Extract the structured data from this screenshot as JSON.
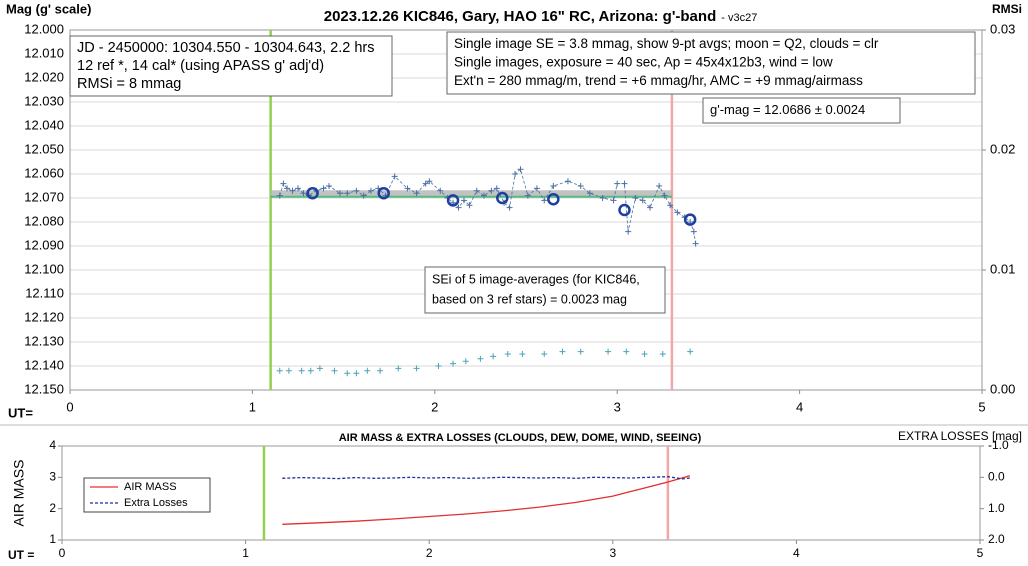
{
  "chart_data": [
    {
      "type": "scatter",
      "title": "2023.12.26 KIC846, Gary, HAO 16\" RC, Arizona: g'-band",
      "subtitle": "- v3c27",
      "y_label": "Mag (g' scale)",
      "y2_label": "RMSi",
      "x_label": "UT=",
      "xlim": [
        0,
        5
      ],
      "xticks": [
        0,
        1,
        2,
        3,
        4,
        5
      ],
      "ylim": [
        12.15,
        12.0
      ],
      "yticks": [
        {
          "value": 12,
          "label": "12.000"
        },
        {
          "value": 12.01,
          "label": "12.010"
        },
        {
          "value": 12.02,
          "label": "12.020"
        },
        {
          "value": 12.03,
          "label": "12.030"
        },
        {
          "value": 12.04,
          "label": "12.040"
        },
        {
          "value": 12.05,
          "label": "12.050"
        },
        {
          "value": 12.06,
          "label": "12.060"
        },
        {
          "value": 12.07,
          "label": "12.070"
        },
        {
          "value": 12.08,
          "label": "12.080"
        },
        {
          "value": 12.09,
          "label": "12.090"
        },
        {
          "value": 12.1,
          "label": "12.100"
        },
        {
          "value": 12.11,
          "label": "12.110"
        },
        {
          "value": 12.12,
          "label": "12.120"
        },
        {
          "value": 12.13,
          "label": "12.130"
        },
        {
          "value": 12.14,
          "label": "12.140"
        },
        {
          "value": 12.15,
          "label": "12.150"
        }
      ],
      "y2lim": [
        0,
        0.03
      ],
      "y2ticks": [
        {
          "value": 0,
          "label": "0.00"
        },
        0.01,
        0.02,
        0.03
      ],
      "grid": true,
      "vlines": [
        {
          "x": 1.1,
          "color": "#92d050"
        },
        {
          "x": 3.3,
          "color": "#f4a6a6"
        }
      ],
      "bands": [
        {
          "y": 12.068,
          "x": [
            1.1,
            3.3
          ],
          "color": "#b8b8b8",
          "width": 6
        },
        {
          "y": 12.0695,
          "x": [
            1.1,
            3.3
          ],
          "color": "#3cb371",
          "width": 2
        }
      ],
      "series": [
        {
          "color": "#4a6fa5",
          "marker": "plus",
          "line": "dashed",
          "x": [
            1.15,
            1.17,
            1.19,
            1.22,
            1.25,
            1.28,
            1.31,
            1.35,
            1.39,
            1.42,
            1.48,
            1.52,
            1.57,
            1.61,
            1.65,
            1.69,
            1.73,
            1.78,
            1.85,
            1.9,
            1.95,
            1.97,
            2.03,
            2.07,
            2.1,
            2.13,
            2.16,
            2.19,
            2.23,
            2.27,
            2.31,
            2.34,
            2.38,
            2.41,
            2.44,
            2.47,
            2.51,
            2.56,
            2.6,
            2.65,
            2.73,
            2.8,
            2.85,
            2.92,
            2.98,
            3.0,
            3.04,
            3.06,
            3.1,
            3.14,
            3.18,
            3.23,
            3.26,
            3.29,
            3.33,
            3.37,
            3.4,
            3.42,
            3.43
          ],
          "values": [
            12.069,
            12.064,
            12.066,
            12.067,
            12.066,
            12.068,
            12.069,
            12.067,
            12.066,
            12.065,
            12.068,
            12.068,
            12.067,
            12.069,
            12.067,
            12.066,
            12.069,
            12.061,
            12.066,
            12.068,
            12.064,
            12.063,
            12.067,
            12.07,
            12.072,
            12.074,
            12.071,
            12.073,
            12.067,
            12.069,
            12.067,
            12.066,
            12.072,
            12.074,
            12.06,
            12.058,
            12.069,
            12.066,
            12.071,
            12.065,
            12.063,
            12.065,
            12.068,
            12.07,
            12.071,
            12.064,
            12.064,
            12.084,
            12.07,
            12.071,
            12.074,
            12.065,
            12.069,
            12.073,
            12.076,
            12.078,
            12.08,
            12.084,
            12.089
          ]
        },
        {
          "color": "#1f3fa0",
          "marker": "circle",
          "line": null,
          "x": [
            1.33,
            1.72,
            2.1,
            2.37,
            2.65,
            3.04,
            3.4
          ],
          "values": [
            12.068,
            12.068,
            12.071,
            12.07,
            12.0705,
            12.075,
            12.079
          ]
        },
        {
          "color": "#4aa3b8",
          "marker": "plus",
          "line": null,
          "x": [
            1.15,
            1.2,
            1.27,
            1.32,
            1.37,
            1.45,
            1.52,
            1.57,
            1.63,
            1.7,
            1.8,
            1.9,
            2.02,
            2.1,
            2.17,
            2.25,
            2.32,
            2.4,
            2.48,
            2.6,
            2.7,
            2.8,
            2.95,
            3.05,
            3.15,
            3.25,
            3.4
          ],
          "values": [
            12.142,
            12.142,
            12.142,
            12.142,
            12.141,
            12.142,
            12.143,
            12.143,
            12.142,
            12.142,
            12.141,
            12.141,
            12.14,
            12.139,
            12.138,
            12.137,
            12.136,
            12.135,
            12.135,
            12.135,
            12.134,
            12.134,
            12.134,
            12.134,
            12.135,
            12.135,
            12.134
          ]
        }
      ],
      "annotations": [
        [
          "JD - 2450000: 10304.550 - 10304.643, 2.2 hrs",
          "12 ref *, 14 cal* (using APASS g' adj'd)",
          "RMSi = 8 mmag"
        ],
        [
          "Single image SE = 3.8 mmag, show  9-pt avgs; moon = Q2, clouds = clr",
          "Single images, exposure = 40 sec, Ap = 45x4x12b3, wind = low",
          "Ext'n = 280 mmag/m, trend = +6 mmag/hr, AMC = +9 mmag/airmass"
        ],
        [
          "g'-mag = 12.0686 ± 0.0024"
        ],
        [
          "SEi of 5 image-averages (for KIC846,",
          "based on 3 ref stars) = 0.0023 mag"
        ]
      ]
    },
    {
      "type": "line",
      "title": "AIR MASS & EXTRA LOSSES (CLOUDS, DEW, DOME, WIND, SEEING)",
      "y_label": "AIR MASS",
      "y2_label": "EXTRA LOSSES [mag]",
      "x_label": "UT =",
      "xlim": [
        0,
        5
      ],
      "xticks": [
        0,
        1,
        2,
        3,
        4,
        5
      ],
      "ylim": [
        1,
        4
      ],
      "yticks": [
        1,
        2,
        3,
        4
      ],
      "y2lim": [
        2.0,
        -1.0
      ],
      "y2ticks": [
        {
          "value": -1,
          "label": "-1.0"
        },
        {
          "value": 0,
          "label": "0.0"
        },
        {
          "value": 1,
          "label": "1.0"
        },
        {
          "value": 2,
          "label": "2.0"
        }
      ],
      "grid": false,
      "legend": "lower left",
      "vlines": [
        {
          "x": 1.1,
          "color": "#92d050"
        },
        {
          "x": 3.3,
          "color": "#f4a6a6"
        }
      ],
      "bands": [],
      "series": [
        {
          "name": "AIR MASS",
          "color": "#e03030",
          "marker": "none",
          "line": "solid",
          "x": [
            1.2,
            1.4,
            1.6,
            1.8,
            2.0,
            2.2,
            2.4,
            2.6,
            2.8,
            3.0,
            3.1,
            3.2,
            3.3,
            3.42
          ],
          "values": [
            1.5,
            1.55,
            1.6,
            1.67,
            1.75,
            1.83,
            1.93,
            2.05,
            2.2,
            2.4,
            2.55,
            2.7,
            2.85,
            3.05
          ]
        },
        {
          "name": "Extra Losses",
          "color": "#1f2f9f",
          "marker": "none",
          "line": "dashed",
          "axis": "y2",
          "x": [
            1.2,
            1.3,
            1.4,
            1.5,
            1.6,
            1.7,
            1.8,
            1.9,
            2.0,
            2.1,
            2.2,
            2.3,
            2.4,
            2.5,
            2.6,
            2.7,
            2.8,
            2.9,
            3.0,
            3.1,
            3.2,
            3.3,
            3.38,
            3.42
          ],
          "values": [
            0.03,
            0.01,
            0.02,
            0.04,
            0.01,
            0.03,
            0.02,
            0.0,
            0.02,
            0.01,
            0.03,
            0.02,
            0.0,
            0.01,
            0.02,
            0.01,
            0.03,
            0.0,
            0.01,
            0.02,
            0.0,
            -0.02,
            0.05,
            0.02
          ]
        }
      ]
    }
  ]
}
